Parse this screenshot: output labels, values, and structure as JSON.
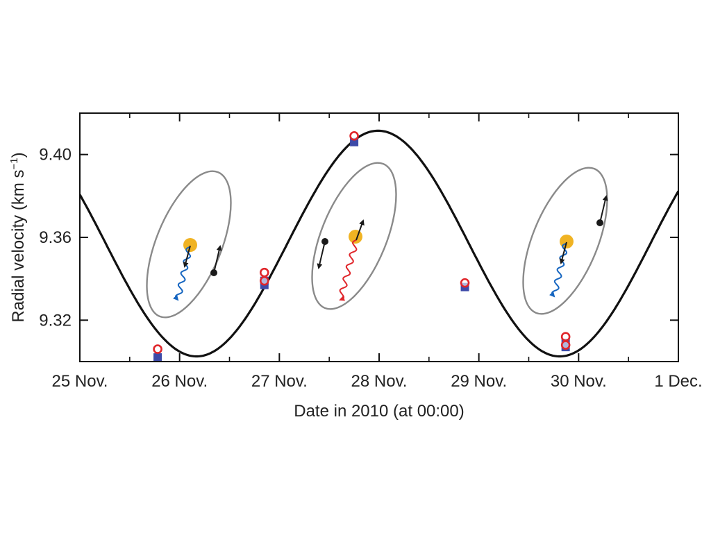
{
  "chart_data": {
    "type": "scatter",
    "title": "",
    "xlabel": "Date in 2010 (at 00:00)",
    "ylabel": "Radial velocity (km s",
    "ylabel_sup": "−1",
    "ylabel_close": ")",
    "xlim": [
      0,
      6
    ],
    "ylim": [
      9.3,
      9.42
    ],
    "x_ticks": [
      {
        "value": 0,
        "label": "25 Nov."
      },
      {
        "value": 1,
        "label": "26 Nov."
      },
      {
        "value": 2,
        "label": "27 Nov."
      },
      {
        "value": 3,
        "label": "28 Nov."
      },
      {
        "value": 4,
        "label": "29 Nov."
      },
      {
        "value": 5,
        "label": "30 Nov."
      },
      {
        "value": 6,
        "label": "1 Dec."
      }
    ],
    "y_ticks": [
      {
        "value": 9.32,
        "label": "9.32"
      },
      {
        "value": 9.36,
        "label": "9.36"
      },
      {
        "value": 9.4,
        "label": "9.40"
      }
    ],
    "model_curve": {
      "color": "#111111",
      "mean": 9.357,
      "amplitude": 0.0545,
      "period_days": 3.64,
      "peak_at": 2.99
    },
    "series": [
      {
        "marker": "square",
        "color": "#3d4aa8",
        "points": [
          [
            0.78,
            9.302
          ],
          [
            1.85,
            9.337
          ],
          [
            1.85,
            9.339
          ],
          [
            2.75,
            9.406
          ],
          [
            3.86,
            9.336
          ],
          [
            4.87,
            9.307
          ],
          [
            4.87,
            9.309
          ]
        ]
      },
      {
        "marker": "open-circle",
        "color": "#e0262b",
        "points": [
          [
            0.78,
            9.306
          ],
          [
            1.85,
            9.343
          ],
          [
            1.85,
            9.339
          ],
          [
            2.75,
            9.409
          ],
          [
            3.86,
            9.338
          ],
          [
            4.87,
            9.312
          ],
          [
            4.87,
            9.308
          ]
        ]
      }
    ],
    "insets": [
      {
        "phase": "approaching",
        "photon_color": "#1565c0",
        "companion_arrow": "up"
      },
      {
        "phase": "receding",
        "photon_color": "#e0262b",
        "companion_arrow": "down"
      },
      {
        "phase": "approaching",
        "photon_color": "#1565c0",
        "companion_arrow": "up"
      }
    ],
    "colors": {
      "star": "#f0b323",
      "orbit": "#8a8a8a",
      "companion": "#1a1a1a",
      "axis": "#111111"
    }
  }
}
